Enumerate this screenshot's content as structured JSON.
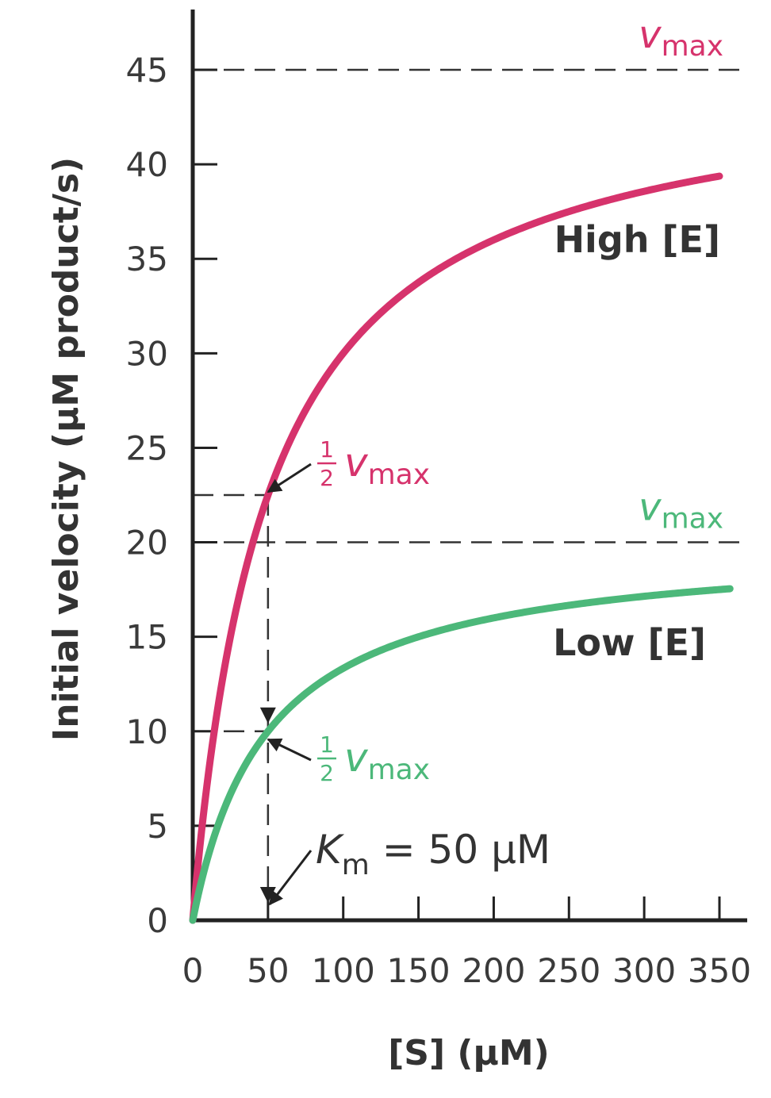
{
  "chart_data": {
    "type": "line",
    "xlabel": "[S] (μM)",
    "ylabel": "Initial velocity (μM product/s)",
    "xlim": [
      0,
      350
    ],
    "ylim": [
      0,
      45
    ],
    "x_ticks": [
      "0",
      "50",
      "100",
      "150",
      "200",
      "250",
      "300",
      "350"
    ],
    "y_ticks": [
      "0",
      "5",
      "10",
      "15",
      "20",
      "25",
      "30",
      "35",
      "40",
      "45"
    ],
    "series": [
      {
        "name": "High [E]",
        "color": "#d6336c",
        "vmax": 45,
        "km": 50,
        "x_end": 350
      },
      {
        "name": "Low [E]",
        "color": "#4cb87a",
        "vmax": 20,
        "km": 50,
        "x_end": 357
      }
    ],
    "reference_lines": [
      {
        "y": 45,
        "label_base": "v",
        "label_sub": "max",
        "color": "#d6336c"
      },
      {
        "y": 20,
        "label_base": "v",
        "label_sub": "max",
        "color": "#4cb87a"
      }
    ],
    "half_vmax_annotations": [
      {
        "num": "1",
        "den": "2",
        "v": "v",
        "sub": "max",
        "y": 22.5,
        "color": "#d6336c"
      },
      {
        "num": "1",
        "den": "2",
        "v": "v",
        "sub": "max",
        "y": 10,
        "color": "#4cb87a"
      }
    ],
    "km_annotation": {
      "k": "K",
      "sub": "m",
      "rest": "= 50 μM",
      "x": 50
    }
  }
}
